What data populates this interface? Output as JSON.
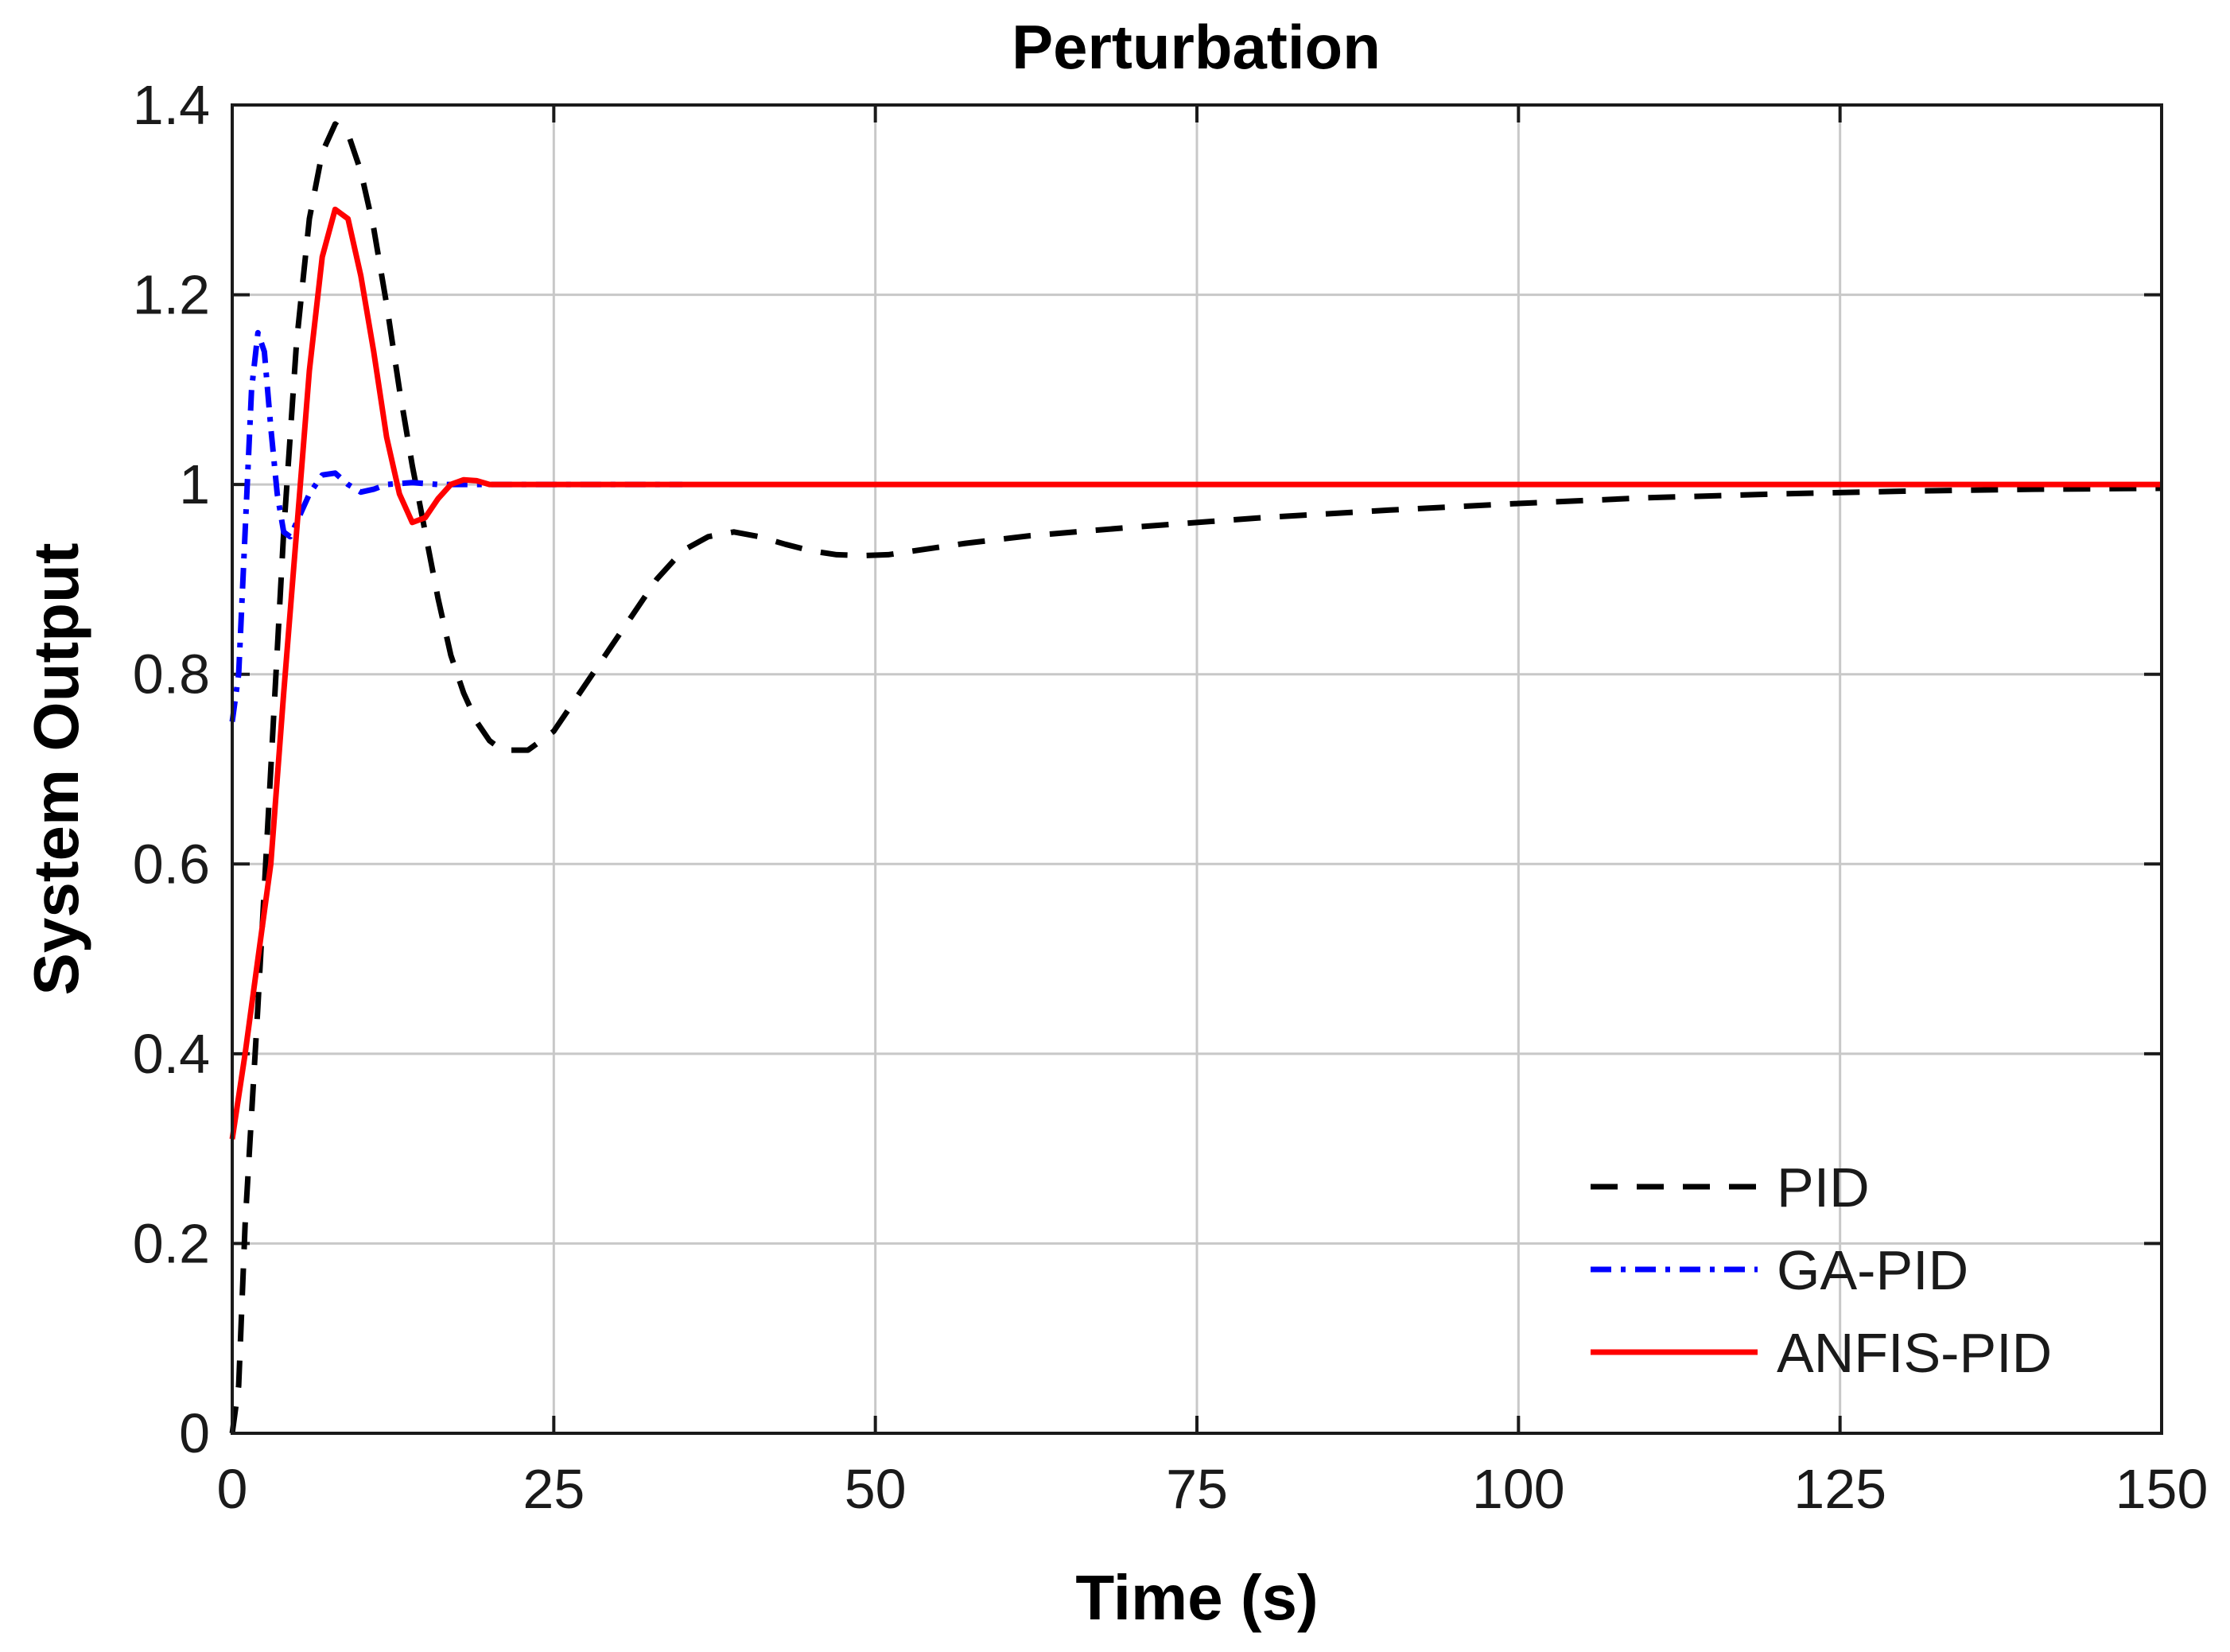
{
  "chart_data": {
    "type": "line",
    "title": "Perturbation",
    "xlabel": "Time (s)",
    "ylabel": "System Output",
    "xlim": [
      0,
      150
    ],
    "ylim": [
      0,
      1.4
    ],
    "xticks": [
      0,
      25,
      50,
      75,
      100,
      125,
      150
    ],
    "xtick_labels": [
      "0",
      "25",
      "50",
      "75",
      "100",
      "125",
      "150"
    ],
    "yticks": [
      0,
      0.2,
      0.4,
      0.6,
      0.8,
      1,
      1.2,
      1.4
    ],
    "ytick_labels": [
      "0",
      "0.2",
      "0.4",
      "0.6",
      "0.8",
      "1",
      "1.2",
      "1.4"
    ],
    "grid": true,
    "legend_position": "bottom-right",
    "series": [
      {
        "name": "PID",
        "color": "#000000",
        "style": "dashed",
        "points": [
          [
            0,
            0
          ],
          [
            0.5,
            0.05
          ],
          [
            1,
            0.22
          ],
          [
            2,
            0.45
          ],
          [
            3,
            0.7
          ],
          [
            4,
            0.95
          ],
          [
            5,
            1.15
          ],
          [
            6,
            1.28
          ],
          [
            7,
            1.35
          ],
          [
            8,
            1.38
          ],
          [
            9,
            1.37
          ],
          [
            10,
            1.33
          ],
          [
            11,
            1.27
          ],
          [
            12,
            1.19
          ],
          [
            13,
            1.1
          ],
          [
            14,
            1.02
          ],
          [
            15,
            0.95
          ],
          [
            16,
            0.88
          ],
          [
            17,
            0.82
          ],
          [
            18,
            0.78
          ],
          [
            19,
            0.75
          ],
          [
            20,
            0.73
          ],
          [
            21,
            0.72
          ],
          [
            22,
            0.72
          ],
          [
            23,
            0.72
          ],
          [
            24,
            0.73
          ],
          [
            25,
            0.74
          ],
          [
            27,
            0.78
          ],
          [
            29,
            0.82
          ],
          [
            31,
            0.86
          ],
          [
            33,
            0.9
          ],
          [
            35,
            0.93
          ],
          [
            37,
            0.945
          ],
          [
            39,
            0.95
          ],
          [
            41,
            0.945
          ],
          [
            43,
            0.937
          ],
          [
            45,
            0.93
          ],
          [
            47,
            0.926
          ],
          [
            49,
            0.925
          ],
          [
            51,
            0.926
          ],
          [
            53,
            0.93
          ],
          [
            57,
            0.938
          ],
          [
            62,
            0.946
          ],
          [
            70,
            0.955
          ],
          [
            80,
            0.965
          ],
          [
            90,
            0.973
          ],
          [
            100,
            0.98
          ],
          [
            110,
            0.986
          ],
          [
            120,
            0.99
          ],
          [
            130,
            0.993
          ],
          [
            140,
            0.995
          ],
          [
            150,
            0.996
          ]
        ]
      },
      {
        "name": "GA-PID",
        "color": "#0000ff",
        "style": "dash-dot",
        "points": [
          [
            0,
            0.75
          ],
          [
            0.5,
            0.8
          ],
          [
            1,
            0.95
          ],
          [
            1.5,
            1.1
          ],
          [
            2,
            1.16
          ],
          [
            2.5,
            1.14
          ],
          [
            3,
            1.06
          ],
          [
            3.5,
            0.99
          ],
          [
            4,
            0.95
          ],
          [
            4.5,
            0.945
          ],
          [
            5,
            0.96
          ],
          [
            6,
            0.99
          ],
          [
            7,
            1.01
          ],
          [
            8,
            1.012
          ],
          [
            9,
            1.0
          ],
          [
            10,
            0.992
          ],
          [
            11,
            0.995
          ],
          [
            12,
            1.0
          ],
          [
            14,
            1.002
          ],
          [
            16,
            1.0
          ],
          [
            20,
            1.0
          ],
          [
            35,
            1.0
          ]
        ]
      },
      {
        "name": "ANFIS-PID",
        "color": "#ff0000",
        "style": "solid",
        "points": [
          [
            0,
            0.31
          ],
          [
            1,
            0.4
          ],
          [
            2,
            0.5
          ],
          [
            3,
            0.6
          ],
          [
            4,
            0.78
          ],
          [
            5,
            0.95
          ],
          [
            6,
            1.12
          ],
          [
            7,
            1.24
          ],
          [
            8,
            1.29
          ],
          [
            9,
            1.28
          ],
          [
            10,
            1.22
          ],
          [
            11,
            1.14
          ],
          [
            12,
            1.05
          ],
          [
            13,
            0.99
          ],
          [
            14,
            0.96
          ],
          [
            15,
            0.965
          ],
          [
            16,
            0.985
          ],
          [
            17,
            1.0
          ],
          [
            18,
            1.005
          ],
          [
            19,
            1.004
          ],
          [
            20,
            1.0
          ],
          [
            25,
            1.0
          ],
          [
            50,
            1.0
          ],
          [
            100,
            1.0
          ],
          [
            150,
            1.0
          ]
        ]
      }
    ]
  }
}
